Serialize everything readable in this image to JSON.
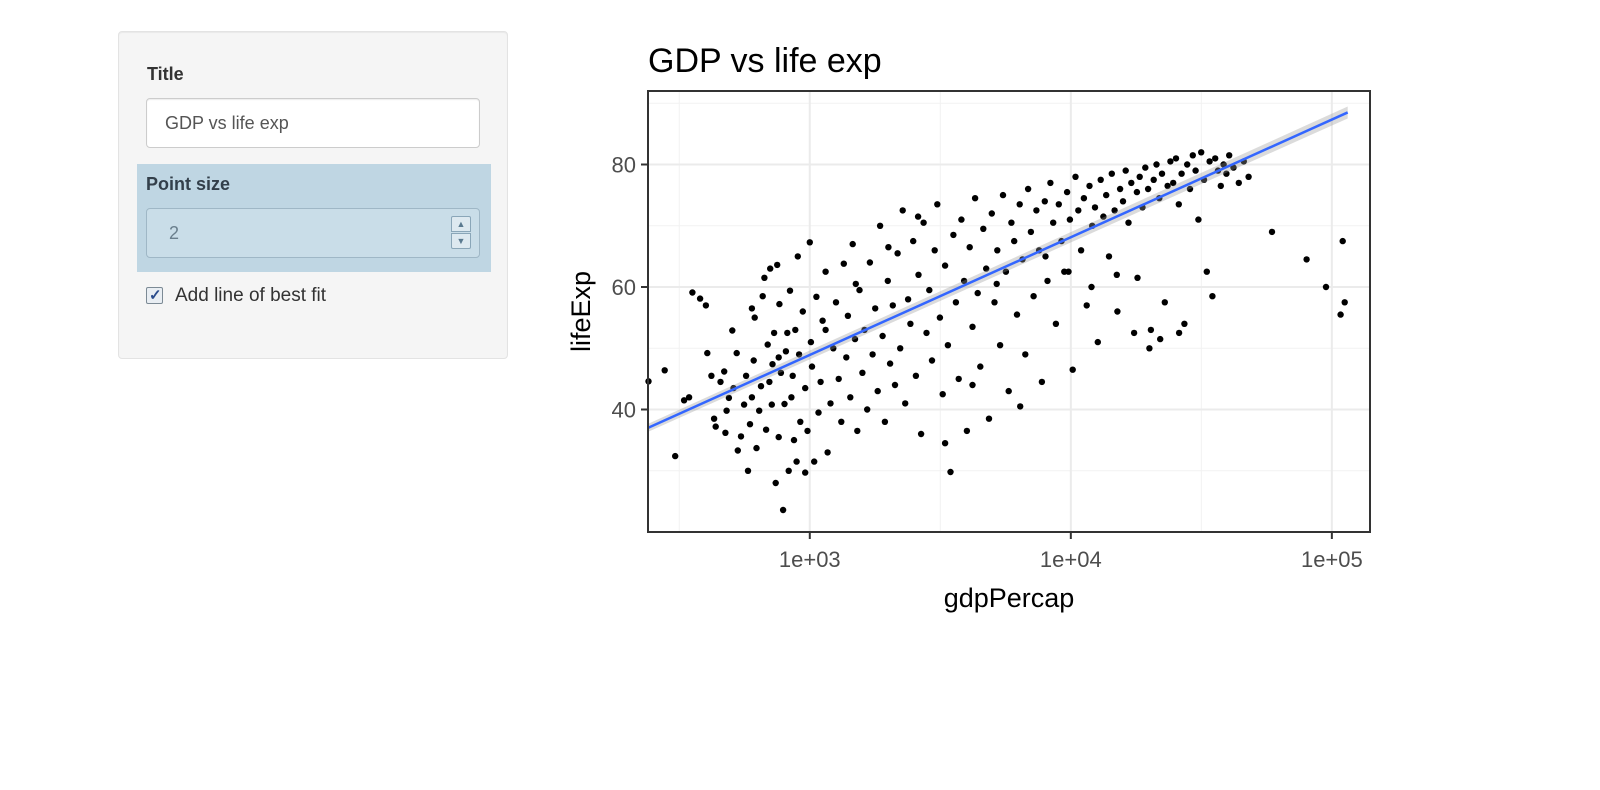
{
  "sidebar": {
    "title_label": "Title",
    "title_value": "GDP vs life exp",
    "point_size_label": "Point size",
    "point_size_value": "2",
    "fit_label": "Add line of best fit",
    "fit_checked": true,
    "highlight_color": "#bfd6e3"
  },
  "chart_data": {
    "type": "scatter",
    "title": "GDP vs life exp",
    "xlabel": "gdpPercap",
    "ylabel": "lifeExp",
    "x_scale": "log10",
    "xlim": [
      240,
      140000
    ],
    "ylim": [
      20,
      92
    ],
    "x_ticks": [
      {
        "value": 1000,
        "label": "1e+03"
      },
      {
        "value": 10000,
        "label": "1e+04"
      },
      {
        "value": 100000,
        "label": "1e+05"
      }
    ],
    "y_ticks": [
      {
        "value": 40,
        "label": "40"
      },
      {
        "value": 60,
        "label": "60"
      },
      {
        "value": 80,
        "label": "80"
      }
    ],
    "grid": true,
    "point_color": "#000000",
    "point_count": 1704,
    "fit_line": {
      "color": "#3366ff",
      "from": {
        "x": 240,
        "y": 37
      },
      "to": {
        "x": 115000,
        "y": 88.5
      }
    },
    "points": [
      [
        241,
        44.6
      ],
      [
        278,
        46.4
      ],
      [
        305,
        32.4
      ],
      [
        345,
        42.0
      ],
      [
        330,
        41.5
      ],
      [
        355,
        59.1
      ],
      [
        380,
        58.1
      ],
      [
        400,
        57.0
      ],
      [
        405,
        49.2
      ],
      [
        420,
        45.5
      ],
      [
        430,
        38.5
      ],
      [
        436,
        37.2
      ],
      [
        455,
        44.5
      ],
      [
        470,
        46.2
      ],
      [
        475,
        36.2
      ],
      [
        480,
        39.8
      ],
      [
        490,
        41.9
      ],
      [
        510,
        43.5
      ],
      [
        505,
        52.9
      ],
      [
        525,
        49.2
      ],
      [
        530,
        33.3
      ],
      [
        545,
        35.6
      ],
      [
        560,
        40.8
      ],
      [
        570,
        45.5
      ],
      [
        580,
        30.0
      ],
      [
        590,
        37.6
      ],
      [
        600,
        42.0
      ],
      [
        610,
        48.0
      ],
      [
        615,
        55.0
      ],
      [
        625,
        33.7
      ],
      [
        640,
        39.8
      ],
      [
        650,
        43.8
      ],
      [
        660,
        58.5
      ],
      [
        670,
        61.5
      ],
      [
        680,
        36.7
      ],
      [
        690,
        50.6
      ],
      [
        700,
        44.5
      ],
      [
        705,
        63.0
      ],
      [
        715,
        40.8
      ],
      [
        720,
        47.4
      ],
      [
        730,
        52.5
      ],
      [
        740,
        28.0
      ],
      [
        750,
        63.6
      ],
      [
        760,
        35.5
      ],
      [
        765,
        57.2
      ],
      [
        775,
        46.0
      ],
      [
        790,
        23.6
      ],
      [
        800,
        40.9
      ],
      [
        810,
        49.5
      ],
      [
        820,
        52.5
      ],
      [
        830,
        30.0
      ],
      [
        840,
        59.4
      ],
      [
        850,
        42.0
      ],
      [
        860,
        45.5
      ],
      [
        870,
        35.0
      ],
      [
        880,
        53.0
      ],
      [
        890,
        31.5
      ],
      [
        900,
        65.0
      ],
      [
        910,
        49.0
      ],
      [
        920,
        38.0
      ],
      [
        940,
        56.0
      ],
      [
        960,
        43.5
      ],
      [
        980,
        36.5
      ],
      [
        1000,
        67.3
      ],
      [
        1010,
        51.0
      ],
      [
        1020,
        47.0
      ],
      [
        1040,
        31.5
      ],
      [
        1060,
        58.4
      ],
      [
        1080,
        39.5
      ],
      [
        1100,
        44.5
      ],
      [
        1120,
        54.5
      ],
      [
        1150,
        62.5
      ],
      [
        1170,
        33.0
      ],
      [
        1200,
        41.0
      ],
      [
        1230,
        50.0
      ],
      [
        1260,
        57.5
      ],
      [
        1290,
        45.0
      ],
      [
        1320,
        38.0
      ],
      [
        1350,
        63.8
      ],
      [
        1380,
        48.5
      ],
      [
        1400,
        55.3
      ],
      [
        1430,
        42.0
      ],
      [
        1460,
        67.0
      ],
      [
        1490,
        51.5
      ],
      [
        1520,
        36.5
      ],
      [
        1550,
        59.5
      ],
      [
        1590,
        46.0
      ],
      [
        1620,
        53.0
      ],
      [
        1660,
        40.0
      ],
      [
        1700,
        64.0
      ],
      [
        1740,
        49.0
      ],
      [
        1780,
        56.5
      ],
      [
        1820,
        43.0
      ],
      [
        1860,
        70.0
      ],
      [
        1900,
        52.0
      ],
      [
        1940,
        38.0
      ],
      [
        1990,
        61.0
      ],
      [
        2030,
        47.5
      ],
      [
        2080,
        57.0
      ],
      [
        2120,
        44.0
      ],
      [
        2170,
        65.5
      ],
      [
        2220,
        50.0
      ],
      [
        2270,
        72.5
      ],
      [
        2320,
        41.0
      ],
      [
        2380,
        58.0
      ],
      [
        2430,
        54.0
      ],
      [
        2490,
        67.5
      ],
      [
        2550,
        45.5
      ],
      [
        2610,
        62.0
      ],
      [
        2670,
        36.0
      ],
      [
        2730,
        70.5
      ],
      [
        2800,
        52.5
      ],
      [
        2870,
        59.5
      ],
      [
        2940,
        48.0
      ],
      [
        3010,
        66.0
      ],
      [
        3080,
        73.5
      ],
      [
        3150,
        55.0
      ],
      [
        3230,
        42.5
      ],
      [
        3300,
        63.5
      ],
      [
        3380,
        50.5
      ],
      [
        3460,
        29.8
      ],
      [
        3550,
        68.5
      ],
      [
        3630,
        57.5
      ],
      [
        3720,
        45.0
      ],
      [
        3810,
        71.0
      ],
      [
        3900,
        61.0
      ],
      [
        4000,
        36.5
      ],
      [
        4100,
        66.5
      ],
      [
        4200,
        53.5
      ],
      [
        4300,
        74.5
      ],
      [
        4400,
        59.0
      ],
      [
        4500,
        47.0
      ],
      [
        4620,
        69.5
      ],
      [
        4740,
        63.0
      ],
      [
        4860,
        38.5
      ],
      [
        4980,
        72.0
      ],
      [
        5100,
        57.5
      ],
      [
        5230,
        66.0
      ],
      [
        5360,
        50.5
      ],
      [
        5500,
        75.0
      ],
      [
        5640,
        62.5
      ],
      [
        5780,
        43.0
      ],
      [
        5920,
        70.5
      ],
      [
        6070,
        67.5
      ],
      [
        6220,
        55.5
      ],
      [
        6370,
        73.5
      ],
      [
        6530,
        64.5
      ],
      [
        6690,
        49.0
      ],
      [
        6860,
        76.0
      ],
      [
        7030,
        69.0
      ],
      [
        7200,
        58.5
      ],
      [
        7380,
        72.5
      ],
      [
        7560,
        66.0
      ],
      [
        7750,
        44.5
      ],
      [
        7950,
        74.0
      ],
      [
        8140,
        61.0
      ],
      [
        8350,
        77.0
      ],
      [
        8560,
        70.5
      ],
      [
        8770,
        54.0
      ],
      [
        8990,
        73.5
      ],
      [
        9210,
        67.5
      ],
      [
        9440,
        62.5
      ],
      [
        9680,
        75.5
      ],
      [
        9920,
        71.0
      ],
      [
        10170,
        46.5
      ],
      [
        10420,
        78.0
      ],
      [
        10680,
        72.5
      ],
      [
        10950,
        66.0
      ],
      [
        11220,
        74.5
      ],
      [
        11500,
        57.0
      ],
      [
        11790,
        76.5
      ],
      [
        12080,
        70.0
      ],
      [
        12380,
        73.0
      ],
      [
        12690,
        51.0
      ],
      [
        13010,
        77.5
      ],
      [
        13330,
        71.5
      ],
      [
        13660,
        75.0
      ],
      [
        14000,
        65.0
      ],
      [
        14350,
        78.5
      ],
      [
        14710,
        72.5
      ],
      [
        15080,
        56.0
      ],
      [
        15450,
        76.0
      ],
      [
        15840,
        74.0
      ],
      [
        16230,
        79.0
      ],
      [
        16640,
        70.5
      ],
      [
        17050,
        77.0
      ],
      [
        17480,
        52.5
      ],
      [
        17910,
        75.5
      ],
      [
        18360,
        78.0
      ],
      [
        18820,
        73.0
      ],
      [
        19290,
        79.5
      ],
      [
        19770,
        76.0
      ],
      [
        20260,
        53.0
      ],
      [
        20770,
        77.5
      ],
      [
        21290,
        80.0
      ],
      [
        21820,
        74.5
      ],
      [
        22360,
        78.5
      ],
      [
        22920,
        57.5
      ],
      [
        23490,
        76.5
      ],
      [
        24080,
        80.5
      ],
      [
        24680,
        77.0
      ],
      [
        25300,
        81.0
      ],
      [
        25930,
        73.5
      ],
      [
        26580,
        78.5
      ],
      [
        27240,
        54.0
      ],
      [
        27920,
        80.0
      ],
      [
        28620,
        76.0
      ],
      [
        29330,
        81.5
      ],
      [
        30060,
        79.0
      ],
      [
        30810,
        71.0
      ],
      [
        31580,
        82.0
      ],
      [
        32370,
        77.5
      ],
      [
        33180,
        62.5
      ],
      [
        34010,
        80.5
      ],
      [
        34860,
        58.5
      ],
      [
        35730,
        81.0
      ],
      [
        36620,
        79.0
      ],
      [
        37540,
        76.5
      ],
      [
        38480,
        80.0
      ],
      [
        39440,
        78.5
      ],
      [
        40420,
        81.5
      ],
      [
        42000,
        79.5
      ],
      [
        44000,
        77.0
      ],
      [
        46000,
        80.5
      ],
      [
        48000,
        78.0
      ],
      [
        59000,
        69.0
      ],
      [
        80000,
        64.5
      ],
      [
        95000,
        60.0
      ],
      [
        108000,
        55.5
      ],
      [
        112000,
        57.5
      ],
      [
        110000,
        67.5
      ],
      [
        600,
        56.5
      ],
      [
        760,
        48.5
      ],
      [
        960,
        29.7
      ],
      [
        1150,
        53.0
      ],
      [
        1500,
        60.5
      ],
      [
        2000,
        66.5
      ],
      [
        2600,
        71.5
      ],
      [
        3300,
        34.5
      ],
      [
        4200,
        44.0
      ],
      [
        5200,
        60.5
      ],
      [
        6400,
        40.5
      ],
      [
        8000,
        65.0
      ],
      [
        9800,
        62.5
      ],
      [
        12000,
        60.0
      ],
      [
        15000,
        62.0
      ],
      [
        18000,
        61.5
      ],
      [
        20000,
        50.0
      ],
      [
        22000,
        51.5
      ],
      [
        26000,
        52.5
      ]
    ]
  }
}
